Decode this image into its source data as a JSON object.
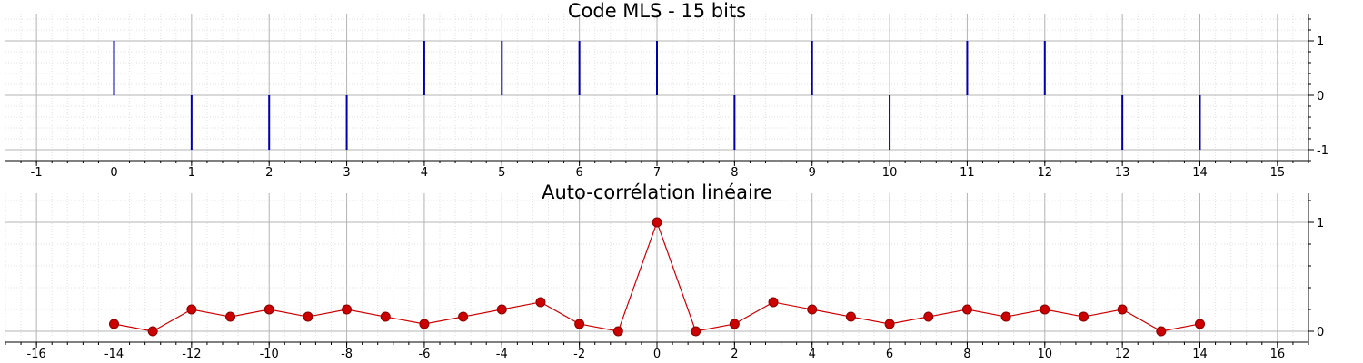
{
  "chart_data": [
    {
      "type": "stem",
      "title": "Code MLS - 15 bits",
      "xlabel": "",
      "ylabel": "",
      "xlim": [
        -1.4,
        15.4
      ],
      "ylim": [
        -1,
        1
      ],
      "xticks": [
        -1,
        0,
        1,
        2,
        3,
        4,
        5,
        6,
        7,
        8,
        9,
        10,
        11,
        12,
        13,
        14,
        15
      ],
      "yticks": [
        -1,
        0,
        1
      ],
      "y_axis_side": "right",
      "grid": true,
      "series": [
        {
          "x": [
            0,
            1,
            2,
            3,
            4,
            5,
            6,
            7,
            8,
            9,
            10,
            11,
            12,
            13,
            14
          ],
          "values": [
            1,
            -1,
            -1,
            -1,
            1,
            1,
            1,
            1,
            -1,
            1,
            -1,
            1,
            1,
            -1,
            -1
          ],
          "color": "#0000aa"
        }
      ]
    },
    {
      "type": "line",
      "title": "Auto-corrélation linéaire",
      "xlabel": "",
      "ylabel": "",
      "xlim": [
        -16.8,
        16.8
      ],
      "ylim": [
        0,
        1
      ],
      "xticks": [
        -16,
        -14,
        -12,
        -10,
        -8,
        -6,
        -4,
        -2,
        0,
        2,
        4,
        6,
        8,
        10,
        12,
        14,
        16
      ],
      "yticks": [
        0,
        1
      ],
      "y_axis_side": "right",
      "grid": true,
      "series": [
        {
          "x": [
            -14,
            -13,
            -12,
            -11,
            -10,
            -9,
            -8,
            -7,
            -6,
            -5,
            -4,
            -3,
            -2,
            -1,
            0,
            1,
            2,
            3,
            4,
            5,
            6,
            7,
            8,
            9,
            10,
            11,
            12,
            13,
            14
          ],
          "values": [
            0.067,
            0,
            0.2,
            0.133,
            0.2,
            0.133,
            0.2,
            0.133,
            0.067,
            0.133,
            0.2,
            0.267,
            0.067,
            0,
            1,
            0,
            0.067,
            0.267,
            0.2,
            0.133,
            0.067,
            0.133,
            0.2,
            0.133,
            0.2,
            0.133,
            0.2,
            0,
            0.067
          ],
          "color": "#cc0000",
          "marker": "circle"
        }
      ]
    }
  ]
}
